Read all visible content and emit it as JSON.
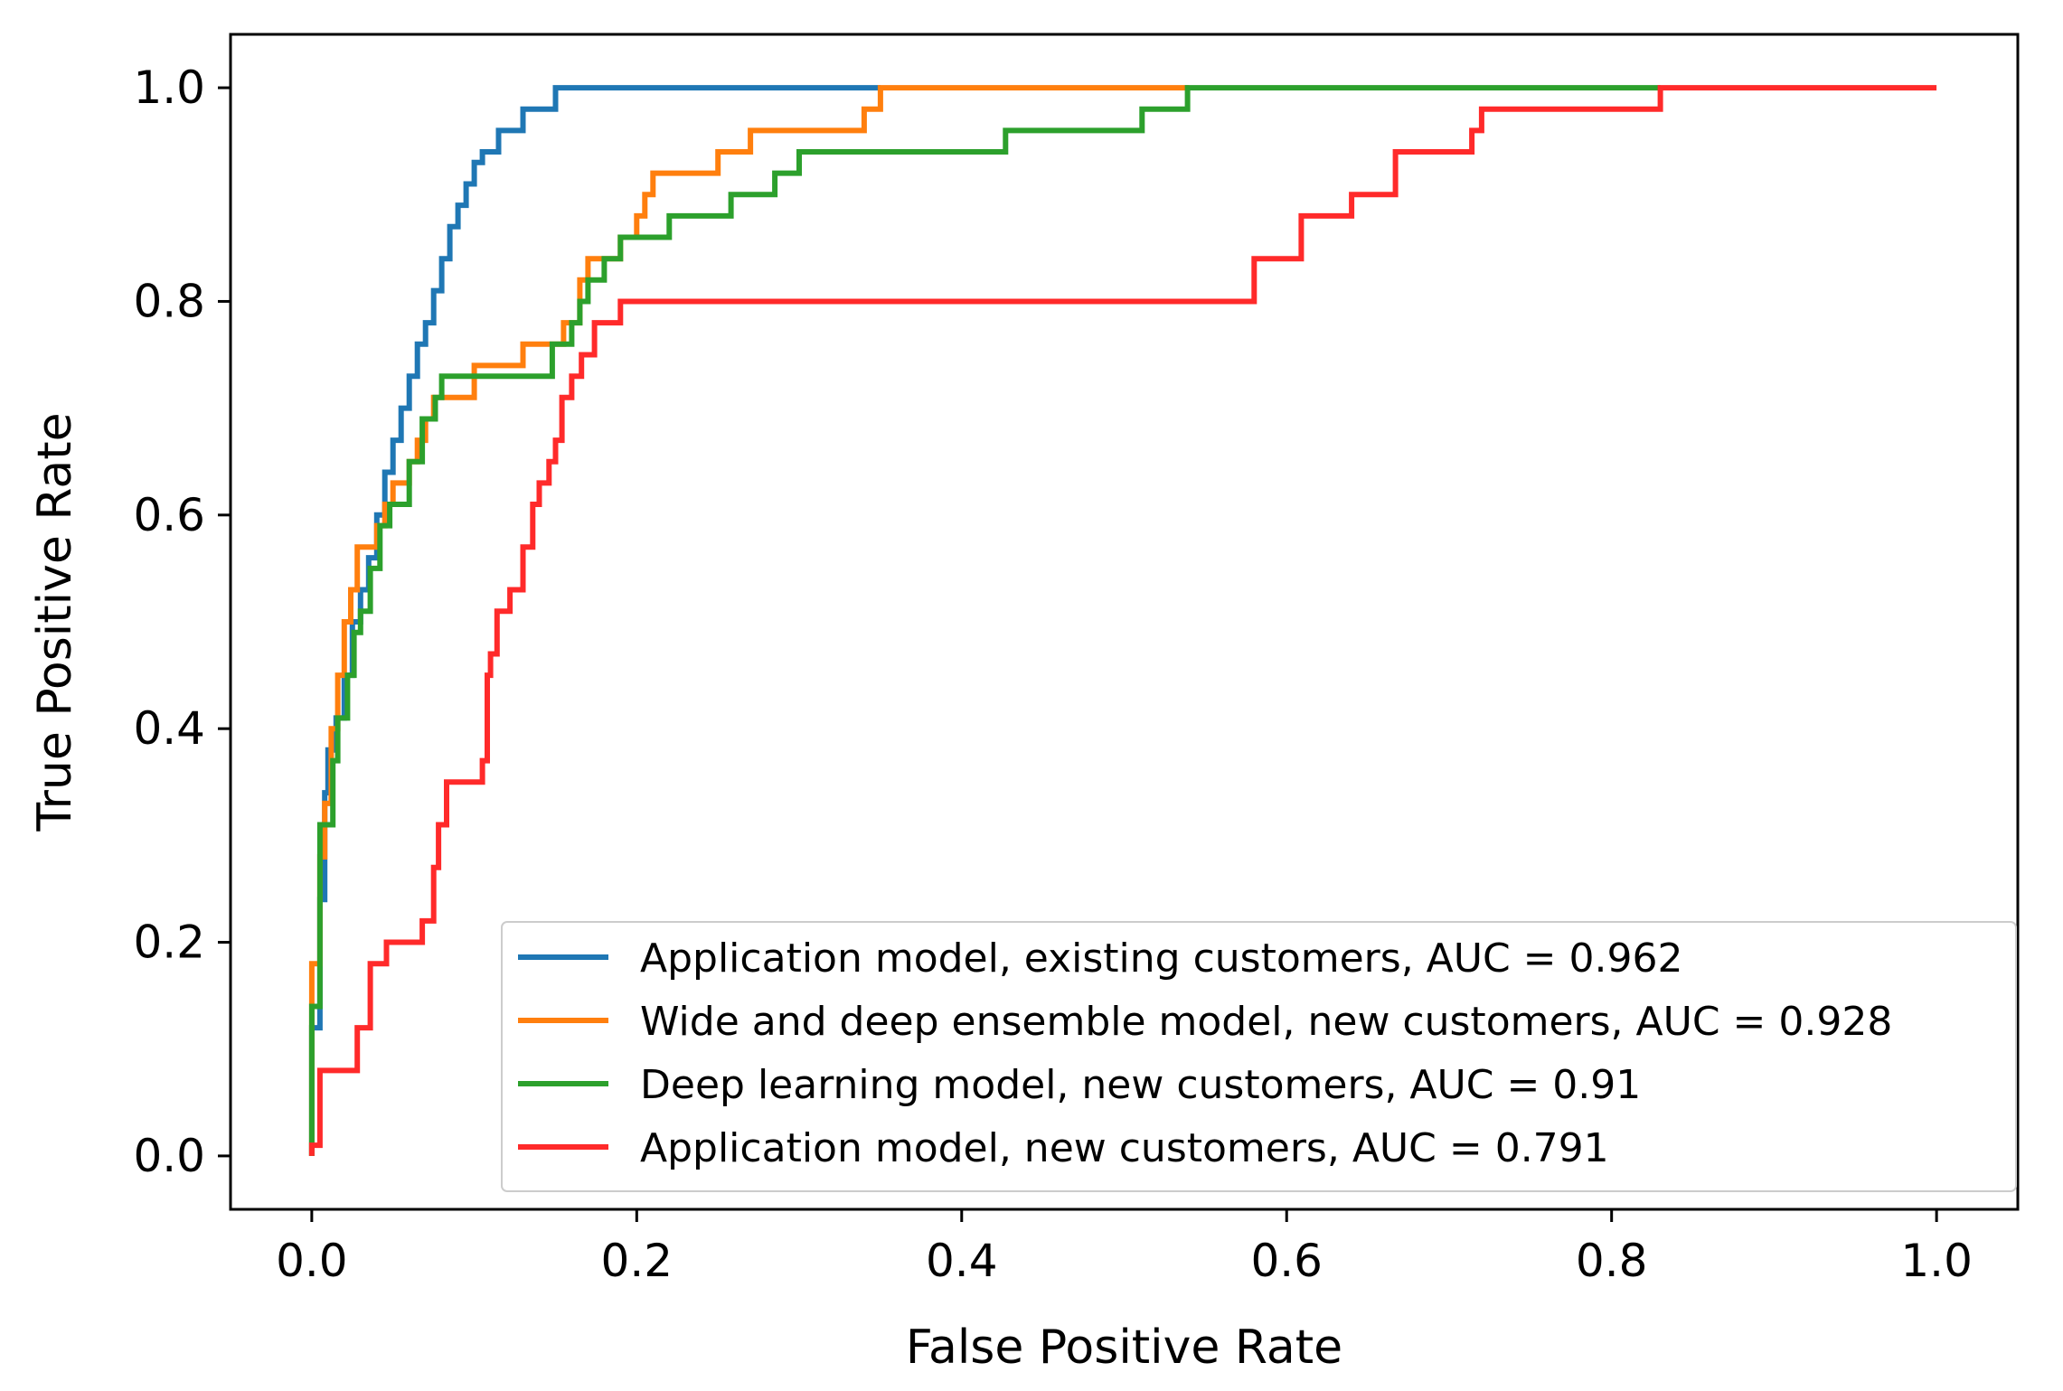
{
  "chart_data": {
    "type": "line",
    "xlabel": "False Positive Rate",
    "ylabel": "True Positive Rate",
    "xlim": [
      -0.05,
      1.05
    ],
    "ylim": [
      -0.05,
      1.05
    ],
    "xticks": [
      0.0,
      0.2,
      0.4,
      0.6,
      0.8,
      1.0
    ],
    "yticks": [
      0.0,
      0.2,
      0.4,
      0.6,
      0.8,
      1.0
    ],
    "xtick_labels": [
      "0.0",
      "0.2",
      "0.4",
      "0.6",
      "0.8",
      "1.0"
    ],
    "ytick_labels": [
      "0.0",
      "0.2",
      "0.4",
      "0.6",
      "0.8",
      "1.0"
    ],
    "grid": false,
    "legend_position": "lower-right",
    "series": [
      {
        "name": "Application model, existing customers, AUC = 0.962",
        "color": "#1f77b4",
        "points": [
          [
            0.0,
            0.0
          ],
          [
            0.0,
            0.12
          ],
          [
            0.005,
            0.12
          ],
          [
            0.005,
            0.24
          ],
          [
            0.008,
            0.24
          ],
          [
            0.008,
            0.34
          ],
          [
            0.01,
            0.34
          ],
          [
            0.01,
            0.38
          ],
          [
            0.015,
            0.38
          ],
          [
            0.015,
            0.41
          ],
          [
            0.02,
            0.41
          ],
          [
            0.02,
            0.45
          ],
          [
            0.025,
            0.45
          ],
          [
            0.025,
            0.5
          ],
          [
            0.03,
            0.5
          ],
          [
            0.03,
            0.53
          ],
          [
            0.035,
            0.53
          ],
          [
            0.035,
            0.56
          ],
          [
            0.04,
            0.56
          ],
          [
            0.04,
            0.6
          ],
          [
            0.045,
            0.6
          ],
          [
            0.045,
            0.64
          ],
          [
            0.05,
            0.64
          ],
          [
            0.05,
            0.67
          ],
          [
            0.055,
            0.67
          ],
          [
            0.055,
            0.7
          ],
          [
            0.06,
            0.7
          ],
          [
            0.06,
            0.73
          ],
          [
            0.065,
            0.73
          ],
          [
            0.065,
            0.76
          ],
          [
            0.07,
            0.76
          ],
          [
            0.07,
            0.78
          ],
          [
            0.075,
            0.78
          ],
          [
            0.075,
            0.81
          ],
          [
            0.08,
            0.81
          ],
          [
            0.08,
            0.84
          ],
          [
            0.085,
            0.84
          ],
          [
            0.085,
            0.87
          ],
          [
            0.09,
            0.87
          ],
          [
            0.09,
            0.89
          ],
          [
            0.095,
            0.89
          ],
          [
            0.095,
            0.91
          ],
          [
            0.1,
            0.91
          ],
          [
            0.1,
            0.93
          ],
          [
            0.105,
            0.93
          ],
          [
            0.105,
            0.94
          ],
          [
            0.115,
            0.94
          ],
          [
            0.115,
            0.96
          ],
          [
            0.13,
            0.96
          ],
          [
            0.13,
            0.98
          ],
          [
            0.15,
            0.98
          ],
          [
            0.15,
            1.0
          ],
          [
            0.35,
            1.0
          ]
        ]
      },
      {
        "name": "Wide and deep ensemble model, new customers, AUC = 0.928",
        "color": "#ff7f0e",
        "points": [
          [
            0.0,
            0.0
          ],
          [
            0.0,
            0.18
          ],
          [
            0.005,
            0.18
          ],
          [
            0.005,
            0.28
          ],
          [
            0.008,
            0.28
          ],
          [
            0.008,
            0.33
          ],
          [
            0.012,
            0.33
          ],
          [
            0.012,
            0.4
          ],
          [
            0.016,
            0.4
          ],
          [
            0.016,
            0.45
          ],
          [
            0.02,
            0.45
          ],
          [
            0.02,
            0.5
          ],
          [
            0.024,
            0.5
          ],
          [
            0.024,
            0.53
          ],
          [
            0.028,
            0.53
          ],
          [
            0.028,
            0.57
          ],
          [
            0.04,
            0.57
          ],
          [
            0.04,
            0.59
          ],
          [
            0.045,
            0.59
          ],
          [
            0.045,
            0.61
          ],
          [
            0.05,
            0.61
          ],
          [
            0.05,
            0.63
          ],
          [
            0.06,
            0.63
          ],
          [
            0.06,
            0.65
          ],
          [
            0.065,
            0.65
          ],
          [
            0.065,
            0.67
          ],
          [
            0.07,
            0.67
          ],
          [
            0.07,
            0.69
          ],
          [
            0.075,
            0.69
          ],
          [
            0.075,
            0.71
          ],
          [
            0.1,
            0.71
          ],
          [
            0.1,
            0.74
          ],
          [
            0.13,
            0.74
          ],
          [
            0.13,
            0.76
          ],
          [
            0.155,
            0.76
          ],
          [
            0.155,
            0.78
          ],
          [
            0.165,
            0.78
          ],
          [
            0.165,
            0.82
          ],
          [
            0.17,
            0.82
          ],
          [
            0.17,
            0.84
          ],
          [
            0.19,
            0.84
          ],
          [
            0.19,
            0.86
          ],
          [
            0.2,
            0.86
          ],
          [
            0.2,
            0.88
          ],
          [
            0.205,
            0.88
          ],
          [
            0.205,
            0.9
          ],
          [
            0.21,
            0.9
          ],
          [
            0.21,
            0.92
          ],
          [
            0.25,
            0.92
          ],
          [
            0.25,
            0.94
          ],
          [
            0.27,
            0.94
          ],
          [
            0.27,
            0.96
          ],
          [
            0.34,
            0.96
          ],
          [
            0.34,
            0.98
          ],
          [
            0.35,
            0.98
          ],
          [
            0.35,
            1.0
          ],
          [
            0.54,
            1.0
          ]
        ]
      },
      {
        "name": "Deep learning model, new customers, AUC = 0.91",
        "color": "#2ca02c",
        "points": [
          [
            0.0,
            0.0
          ],
          [
            0.0,
            0.14
          ],
          [
            0.005,
            0.14
          ],
          [
            0.005,
            0.31
          ],
          [
            0.013,
            0.31
          ],
          [
            0.013,
            0.37
          ],
          [
            0.016,
            0.37
          ],
          [
            0.016,
            0.41
          ],
          [
            0.022,
            0.41
          ],
          [
            0.022,
            0.45
          ],
          [
            0.026,
            0.45
          ],
          [
            0.026,
            0.49
          ],
          [
            0.03,
            0.49
          ],
          [
            0.03,
            0.51
          ],
          [
            0.036,
            0.51
          ],
          [
            0.036,
            0.55
          ],
          [
            0.042,
            0.55
          ],
          [
            0.042,
            0.59
          ],
          [
            0.048,
            0.59
          ],
          [
            0.048,
            0.61
          ],
          [
            0.06,
            0.61
          ],
          [
            0.06,
            0.65
          ],
          [
            0.068,
            0.65
          ],
          [
            0.068,
            0.69
          ],
          [
            0.076,
            0.69
          ],
          [
            0.076,
            0.71
          ],
          [
            0.08,
            0.71
          ],
          [
            0.08,
            0.73
          ],
          [
            0.148,
            0.73
          ],
          [
            0.148,
            0.76
          ],
          [
            0.16,
            0.76
          ],
          [
            0.16,
            0.78
          ],
          [
            0.165,
            0.78
          ],
          [
            0.165,
            0.8
          ],
          [
            0.17,
            0.8
          ],
          [
            0.17,
            0.82
          ],
          [
            0.18,
            0.82
          ],
          [
            0.18,
            0.84
          ],
          [
            0.19,
            0.84
          ],
          [
            0.19,
            0.86
          ],
          [
            0.22,
            0.86
          ],
          [
            0.22,
            0.88
          ],
          [
            0.258,
            0.88
          ],
          [
            0.258,
            0.9
          ],
          [
            0.285,
            0.9
          ],
          [
            0.285,
            0.92
          ],
          [
            0.3,
            0.92
          ],
          [
            0.3,
            0.94
          ],
          [
            0.427,
            0.94
          ],
          [
            0.427,
            0.96
          ],
          [
            0.511,
            0.96
          ],
          [
            0.511,
            0.98
          ],
          [
            0.539,
            0.98
          ],
          [
            0.539,
            1.0
          ],
          [
            0.83,
            1.0
          ]
        ]
      },
      {
        "name": "Application model, new customers, AUC = 0.791",
        "color": "#ff2a2a",
        "points": [
          [
            0.0,
            0.0
          ],
          [
            0.0,
            0.01
          ],
          [
            0.005,
            0.01
          ],
          [
            0.005,
            0.08
          ],
          [
            0.028,
            0.08
          ],
          [
            0.028,
            0.12
          ],
          [
            0.036,
            0.12
          ],
          [
            0.036,
            0.18
          ],
          [
            0.046,
            0.18
          ],
          [
            0.046,
            0.2
          ],
          [
            0.068,
            0.2
          ],
          [
            0.068,
            0.22
          ],
          [
            0.075,
            0.22
          ],
          [
            0.075,
            0.27
          ],
          [
            0.078,
            0.27
          ],
          [
            0.078,
            0.31
          ],
          [
            0.083,
            0.31
          ],
          [
            0.083,
            0.35
          ],
          [
            0.105,
            0.35
          ],
          [
            0.105,
            0.37
          ],
          [
            0.108,
            0.37
          ],
          [
            0.108,
            0.45
          ],
          [
            0.11,
            0.45
          ],
          [
            0.11,
            0.47
          ],
          [
            0.114,
            0.47
          ],
          [
            0.114,
            0.51
          ],
          [
            0.122,
            0.51
          ],
          [
            0.122,
            0.53
          ],
          [
            0.13,
            0.53
          ],
          [
            0.13,
            0.57
          ],
          [
            0.136,
            0.57
          ],
          [
            0.136,
            0.61
          ],
          [
            0.14,
            0.61
          ],
          [
            0.14,
            0.63
          ],
          [
            0.146,
            0.63
          ],
          [
            0.146,
            0.65
          ],
          [
            0.15,
            0.65
          ],
          [
            0.15,
            0.67
          ],
          [
            0.154,
            0.67
          ],
          [
            0.154,
            0.71
          ],
          [
            0.16,
            0.71
          ],
          [
            0.16,
            0.73
          ],
          [
            0.166,
            0.73
          ],
          [
            0.166,
            0.75
          ],
          [
            0.174,
            0.75
          ],
          [
            0.174,
            0.78
          ],
          [
            0.19,
            0.78
          ],
          [
            0.19,
            0.8
          ],
          [
            0.58,
            0.8
          ],
          [
            0.58,
            0.84
          ],
          [
            0.609,
            0.84
          ],
          [
            0.609,
            0.88
          ],
          [
            0.64,
            0.88
          ],
          [
            0.64,
            0.9
          ],
          [
            0.667,
            0.9
          ],
          [
            0.667,
            0.94
          ],
          [
            0.714,
            0.94
          ],
          [
            0.714,
            0.96
          ],
          [
            0.72,
            0.96
          ],
          [
            0.72,
            0.98
          ],
          [
            0.83,
            0.98
          ],
          [
            0.83,
            1.0
          ],
          [
            1.0,
            1.0
          ]
        ]
      }
    ]
  }
}
